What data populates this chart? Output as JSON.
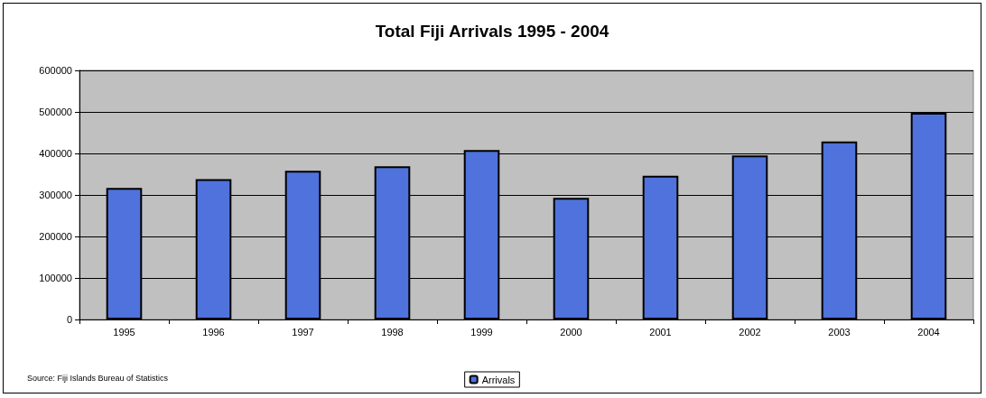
{
  "chart_data": {
    "type": "bar",
    "title": "Total Fiji Arrivals 1995 - 2004",
    "categories": [
      "1995",
      "1996",
      "1997",
      "1998",
      "1999",
      "2000",
      "2001",
      "2002",
      "2003",
      "2004"
    ],
    "series": [
      {
        "name": "Arrivals",
        "color": "#4f72dc",
        "values": [
          317000,
          338000,
          358000,
          369000,
          408000,
          293000,
          346000,
          395000,
          429000,
          498000
        ]
      }
    ],
    "ylim": [
      0,
      600000
    ],
    "yticks": [
      0,
      100000,
      200000,
      300000,
      400000,
      500000,
      600000
    ],
    "grid": "y",
    "legend": "bottom",
    "annotations": [
      "Source: Fiji Islands Bureau of Statistics"
    ]
  }
}
